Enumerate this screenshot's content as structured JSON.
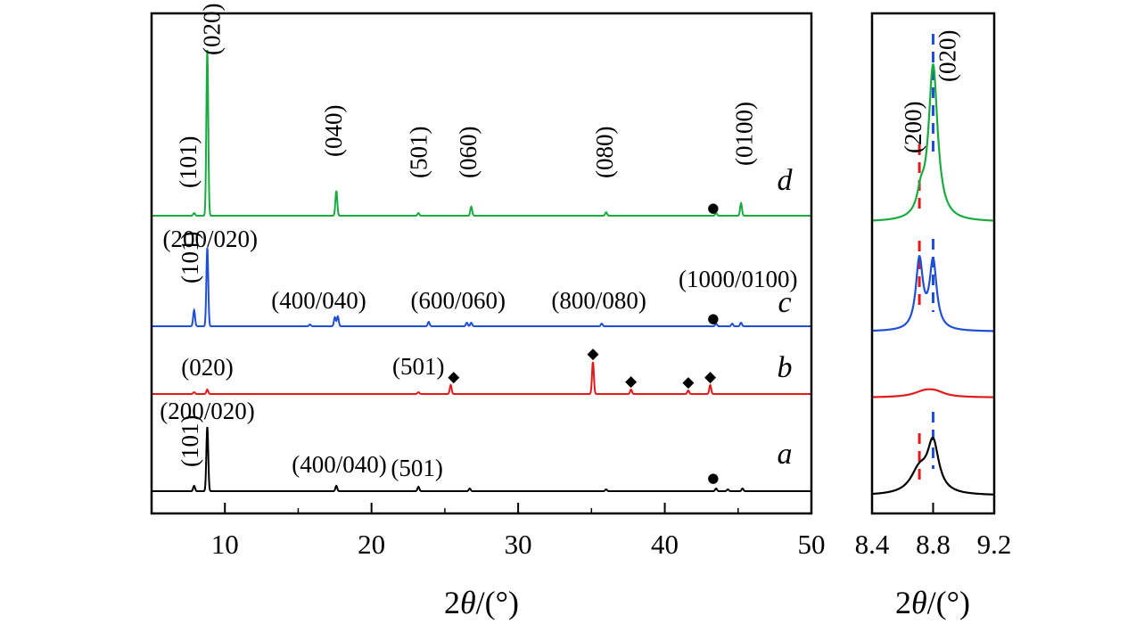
{
  "chart_data": [
    {
      "type": "line",
      "panel": "main",
      "xlim": [
        5,
        50
      ],
      "xticks": [
        10,
        20,
        30,
        40,
        50
      ],
      "xlabel": {
        "pre": "2",
        "theta": "θ",
        "post": "/(°)"
      },
      "ylabel": "",
      "series": [
        {
          "name": "a",
          "color": "#000000",
          "peaks": [
            [
              7.9,
              6
            ],
            [
              8.8,
              72
            ],
            [
              17.6,
              6
            ],
            [
              23.2,
              5
            ],
            [
              26.7,
              3
            ],
            [
              36.0,
              2
            ],
            [
              43.5,
              3
            ],
            [
              44.3,
              2
            ],
            [
              45.3,
              3
            ]
          ],
          "labels": [
            {
              "text": "(101)",
              "x": 7.6,
              "rotated": true
            },
            {
              "text": "(200/020)",
              "x": 8.8,
              "rotated": false
            },
            {
              "text": "(400/040)",
              "x": 17.8,
              "rotated": false
            },
            {
              "text": "(501)",
              "x": 23.1,
              "rotated": false
            }
          ],
          "markers": [
            {
              "symbol": "●",
              "x": 43.3
            }
          ]
        },
        {
          "name": "b",
          "color": "#e31a1c",
          "peaks": [
            [
              7.9,
              2
            ],
            [
              8.8,
              5
            ],
            [
              23.2,
              2
            ],
            [
              25.4,
              10
            ],
            [
              35.1,
              36
            ],
            [
              37.7,
              5
            ],
            [
              41.6,
              4
            ],
            [
              43.1,
              10
            ]
          ],
          "labels": [
            {
              "text": "(020)",
              "x": 8.8,
              "rotated": false
            },
            {
              "text": "(501)",
              "x": 23.2,
              "rotated": false
            }
          ],
          "markers": [
            {
              "symbol": "◆",
              "x": 25.6
            },
            {
              "symbol": "◆",
              "x": 35.1
            },
            {
              "symbol": "◆",
              "x": 37.7
            },
            {
              "symbol": "◆",
              "x": 41.6
            },
            {
              "symbol": "◆",
              "x": 43.1
            }
          ]
        },
        {
          "name": "c",
          "color": "#1f4fd6",
          "peaks": [
            [
              7.9,
              18
            ],
            [
              8.8,
              88
            ],
            [
              15.8,
              2
            ],
            [
              17.5,
              10
            ],
            [
              17.7,
              11
            ],
            [
              23.9,
              5
            ],
            [
              26.5,
              4
            ],
            [
              26.8,
              4
            ],
            [
              35.7,
              3
            ],
            [
              43.5,
              3
            ],
            [
              44.6,
              3
            ],
            [
              45.2,
              4
            ]
          ],
          "labels": [
            {
              "text": "(101)",
              "x": 7.6,
              "rotated": true
            },
            {
              "text": "(200/020)",
              "x": 9.0,
              "rotated": false
            },
            {
              "text": "(400/040)",
              "x": 16.4,
              "rotated": false
            },
            {
              "text": "(600/060)",
              "x": 25.9,
              "rotated": false
            },
            {
              "text": "(800/080)",
              "x": 35.5,
              "rotated": false
            },
            {
              "text": "(1000/0100)",
              "x": 45.0,
              "rotated": false
            }
          ],
          "markers": [
            {
              "symbol": "●",
              "x": 43.3
            }
          ]
        },
        {
          "name": "d",
          "color": "#1aab40",
          "peaks": [
            [
              7.9,
              3
            ],
            [
              8.8,
              186
            ],
            [
              17.6,
              28
            ],
            [
              23.2,
              3
            ],
            [
              26.8,
              10
            ],
            [
              36.0,
              4
            ],
            [
              43.5,
              3
            ],
            [
              45.2,
              14
            ]
          ],
          "labels": [
            {
              "text": "(101)",
              "x": 7.5,
              "rotated": true
            },
            {
              "text": "(020)",
              "x": 9.1,
              "rotated": true
            },
            {
              "text": "(040)",
              "x": 17.4,
              "rotated": true
            },
            {
              "text": "(501)",
              "x": 23.2,
              "rotated": true
            },
            {
              "text": "(060)",
              "x": 26.6,
              "rotated": true
            },
            {
              "text": "(080)",
              "x": 35.9,
              "rotated": true
            },
            {
              "text": "(0100)",
              "x": 45.4,
              "rotated": true
            }
          ],
          "markers": [
            {
              "symbol": "●",
              "x": 43.3
            }
          ]
        }
      ]
    },
    {
      "type": "line",
      "panel": "zoom",
      "xlim": [
        8.4,
        9.2
      ],
      "xticks": [
        "8.4",
        "8.8",
        "9.2"
      ],
      "xlabel": {
        "pre": "2",
        "theta": "θ",
        "post": "/(°)"
      },
      "reference_lines": [
        {
          "x": 8.71,
          "color": "#e31a1c",
          "label": "(200)"
        },
        {
          "x": 8.8,
          "color": "#1f4fd6",
          "label": "(020)"
        }
      ],
      "series": [
        {
          "name": "a",
          "color": "#000000",
          "peaks": [
            [
              8.71,
              26,
              0.07
            ],
            [
              8.8,
              55,
              0.045
            ]
          ]
        },
        {
          "name": "b",
          "color": "#e31a1c",
          "peaks": [
            [
              8.75,
              7,
              0.09
            ],
            [
              8.82,
              4,
              0.07
            ]
          ]
        },
        {
          "name": "c",
          "color": "#1f4fd6",
          "peaks": [
            [
              8.71,
              78,
              0.028
            ],
            [
              8.8,
              76,
              0.028
            ]
          ]
        },
        {
          "name": "d",
          "color": "#1aab40",
          "peaks": [
            [
              8.72,
              22,
              0.03
            ],
            [
              8.8,
              174,
              0.036
            ]
          ]
        }
      ]
    }
  ]
}
